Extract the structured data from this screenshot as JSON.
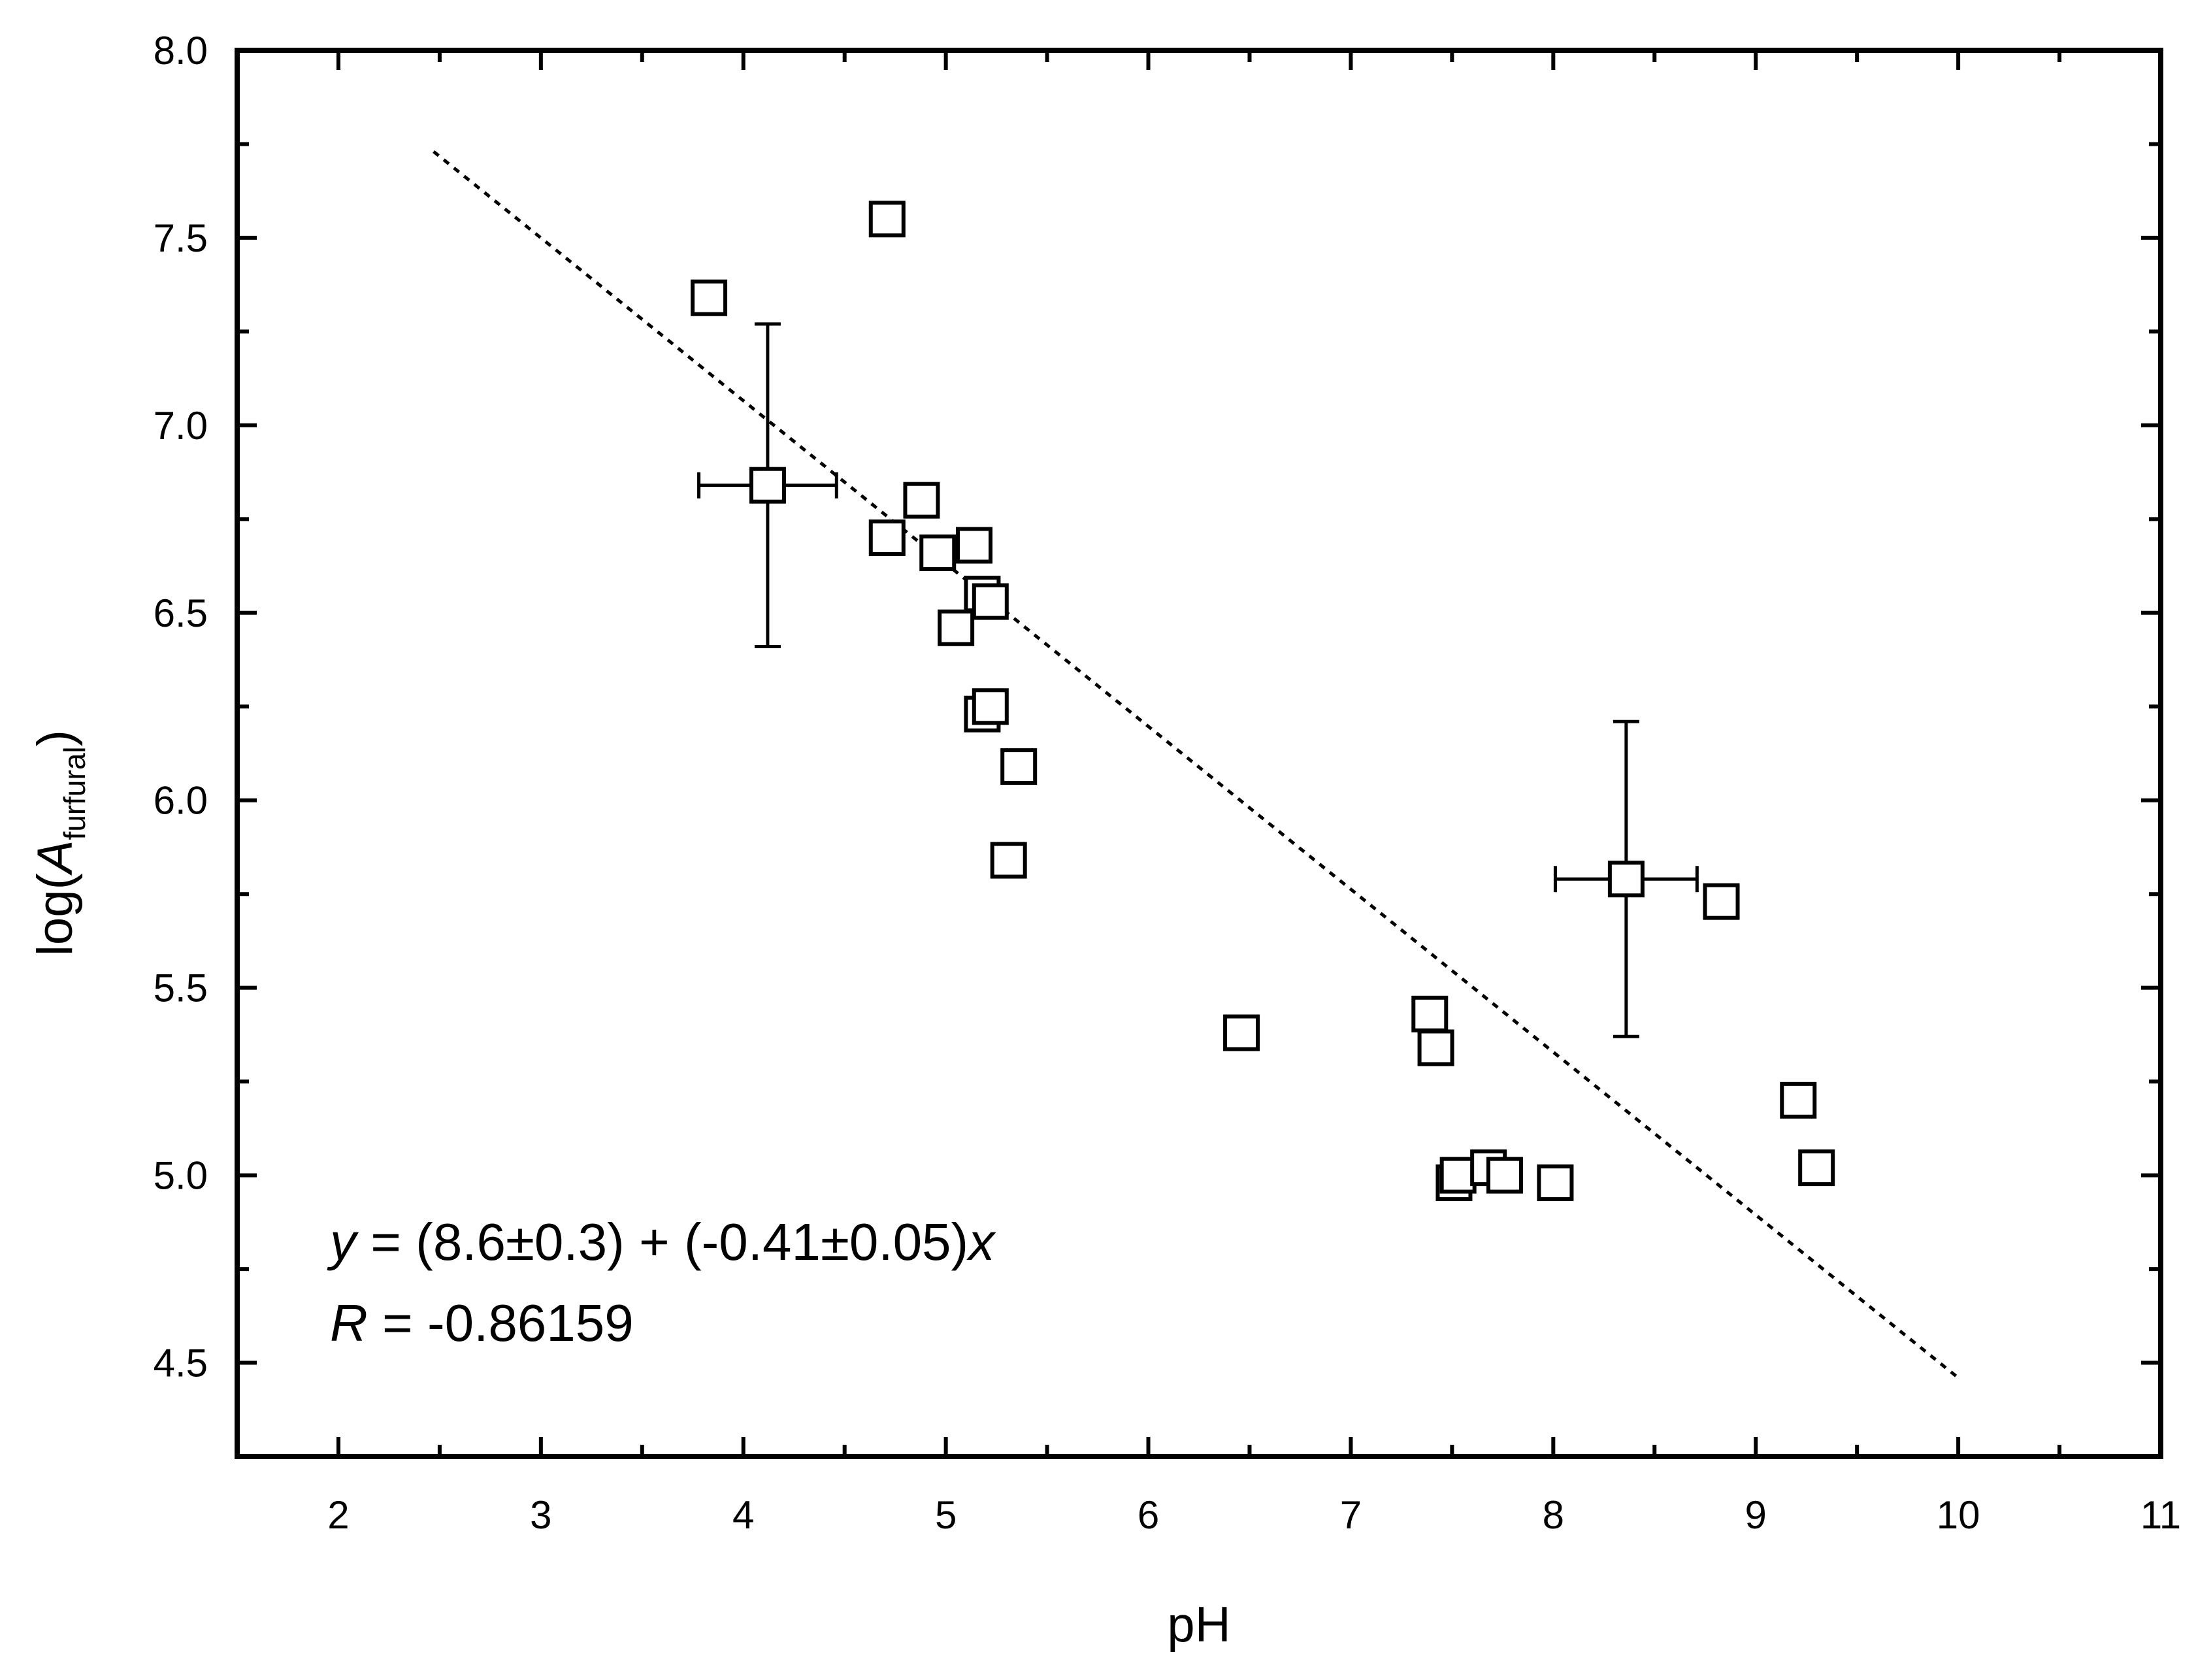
{
  "chart_data": {
    "type": "scatter",
    "xlabel": "pH",
    "ylabel": {
      "prefix": "log(",
      "symbol": "A",
      "subscript": "furfural",
      "suffix": ")"
    },
    "xlim": [
      1.5,
      11
    ],
    "ylim": [
      4.25,
      8.0
    ],
    "xticks": [
      2,
      3,
      4,
      5,
      6,
      7,
      8,
      9,
      10,
      11
    ],
    "yticks": [
      4.5,
      5.0,
      5.5,
      6.0,
      6.5,
      7.0,
      7.5,
      8.0
    ],
    "ytick_labels": [
      "4.5",
      "5.0",
      "5.5",
      "6.0",
      "6.5",
      "7.0",
      "7.5",
      "8.0"
    ],
    "marker": "open-square",
    "points": [
      {
        "x": 3.83,
        "y": 7.34
      },
      {
        "x": 4.12,
        "y": 6.84,
        "xerr": 0.34,
        "yerr": 0.43
      },
      {
        "x": 4.71,
        "y": 7.55
      },
      {
        "x": 4.71,
        "y": 6.7
      },
      {
        "x": 4.88,
        "y": 6.8
      },
      {
        "x": 4.96,
        "y": 6.66
      },
      {
        "x": 5.05,
        "y": 6.46
      },
      {
        "x": 5.14,
        "y": 6.68
      },
      {
        "x": 5.18,
        "y": 6.55
      },
      {
        "x": 5.22,
        "y": 6.53
      },
      {
        "x": 5.18,
        "y": 6.23
      },
      {
        "x": 5.22,
        "y": 6.25
      },
      {
        "x": 5.36,
        "y": 6.09
      },
      {
        "x": 5.31,
        "y": 5.84
      },
      {
        "x": 6.46,
        "y": 5.38
      },
      {
        "x": 7.39,
        "y": 5.43
      },
      {
        "x": 7.42,
        "y": 5.34
      },
      {
        "x": 7.51,
        "y": 4.98
      },
      {
        "x": 7.53,
        "y": 5.0
      },
      {
        "x": 7.68,
        "y": 5.02
      },
      {
        "x": 7.76,
        "y": 5.0
      },
      {
        "x": 8.01,
        "y": 4.98
      },
      {
        "x": 8.36,
        "y": 5.79,
        "xerr": 0.35,
        "yerr": 0.42
      },
      {
        "x": 8.83,
        "y": 5.73
      },
      {
        "x": 9.21,
        "y": 5.2
      },
      {
        "x": 9.3,
        "y": 5.02
      }
    ],
    "fit_line": {
      "x": [
        2.47,
        10.0
      ],
      "y": [
        7.73,
        4.46
      ],
      "style": "dotted"
    },
    "equation": {
      "y_symbol": "y",
      "equation_body": " = (8.6±0.3) + (-0.41±0.05)",
      "x_symbol": "x",
      "r_symbol": "R",
      "r_body": " = -0.86159"
    },
    "grid": false,
    "legend": "none"
  }
}
